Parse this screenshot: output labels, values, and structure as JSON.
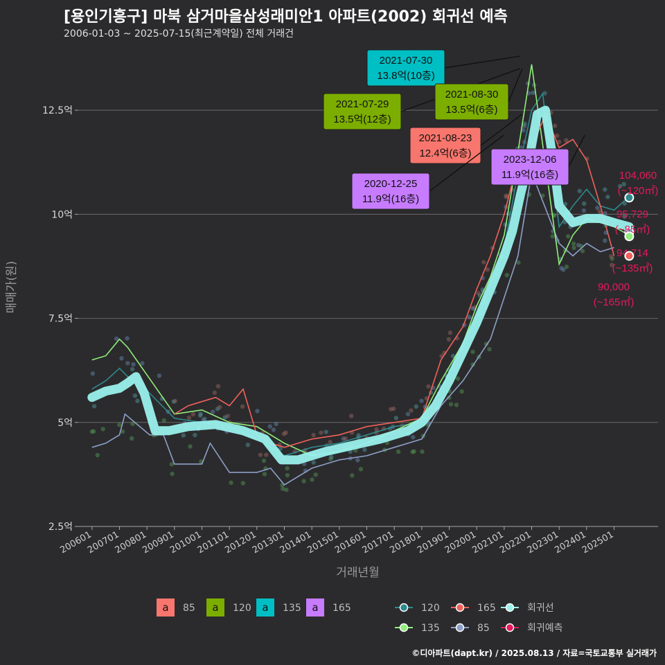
{
  "header": {
    "title": "[용인기흥구] 마북 삼거마을삼성래미안1 아파트(2002) 회귀선 예측",
    "subtitle": "2006-01-03 ~ 2025-07-15(최근계약일) 전체 거래건",
    "credit": "©디아파트(dapt.kr) / 2025.08.13 / 자료=국토교통부 실거래가"
  },
  "colors": {
    "background": "#2b2b2d",
    "size_85": "#f8766d",
    "size_120": "#7cae00",
    "size_135": "#00bfc4",
    "size_165": "#c77cff",
    "line_85": "#8ea0c8",
    "line_120": "#2e8a8e",
    "line_135": "#90ee7a",
    "line_165": "#f0625a",
    "regression": "#9af0ec",
    "forecast": "#e8195a"
  },
  "chart_data": {
    "type": "line",
    "xlabel": "거래년월",
    "ylabel": "매매가(원)",
    "x_ticks": [
      "200601",
      "200701",
      "200801",
      "200901",
      "201001",
      "201101",
      "201201",
      "201301",
      "201401",
      "201501",
      "201601",
      "201701",
      "201801",
      "201901",
      "202001",
      "202101",
      "202201",
      "202301",
      "202401",
      "202501"
    ],
    "y_ticks": [
      "2.5억",
      "5억",
      "7.5억",
      "10억",
      "12.5억"
    ],
    "y_values": [
      2.5,
      5,
      7.5,
      10,
      12.5
    ],
    "ylim": [
      2.5,
      13.9
    ],
    "y_unit": "억",
    "regression": {
      "name": "회귀선",
      "x": [
        2006.0,
        2006.5,
        2007.0,
        2007.3,
        2007.6,
        2007.9,
        2008.3,
        2008.8,
        2009.5,
        2010.5,
        2011.5,
        2012.3,
        2012.9,
        2013.5,
        2014.5,
        2015.5,
        2016.5,
        2017.5,
        2018.0,
        2018.5,
        2019.0,
        2019.5,
        2020.0,
        2020.5,
        2021.0,
        2021.3,
        2021.6,
        2021.9,
        2022.2,
        2022.5,
        2022.8,
        2023.0,
        2023.5,
        2024.0,
        2024.5,
        2025.0,
        2025.55
      ],
      "values": [
        5.6,
        5.75,
        5.82,
        5.95,
        6.1,
        5.7,
        4.8,
        4.8,
        4.9,
        4.95,
        4.8,
        4.6,
        4.1,
        4.1,
        4.3,
        4.45,
        4.6,
        4.8,
        5.0,
        5.4,
        6.0,
        6.7,
        7.4,
        8.2,
        9.0,
        9.6,
        10.5,
        11.3,
        12.4,
        12.5,
        11.2,
        10.2,
        9.8,
        9.9,
        9.9,
        9.8,
        9.7
      ]
    },
    "series": [
      {
        "name": "85",
        "x": [
          2006.0,
          2006.5,
          2007.0,
          2007.2,
          2008.1,
          2008.6,
          2009.0,
          2010.0,
          2010.3,
          2011.0,
          2012.0,
          2012.5,
          2013.0,
          2014.0,
          2015.0,
          2016.0,
          2017.0,
          2018.0,
          2018.7,
          2019.5,
          2020.0,
          2020.5,
          2021.0,
          2021.5,
          2022.0,
          2023.0,
          2023.5,
          2024.0,
          2024.5,
          2025.0
        ],
        "values": [
          4.4,
          4.5,
          4.7,
          5.2,
          4.7,
          4.7,
          4.0,
          4.0,
          4.5,
          3.8,
          3.8,
          3.9,
          3.5,
          3.9,
          4.1,
          4.2,
          4.4,
          4.6,
          5.4,
          6.0,
          6.5,
          7.0,
          8.0,
          9.0,
          11.0,
          9.3,
          9.0,
          9.3,
          9.1,
          9.2
        ]
      },
      {
        "name": "120",
        "x": [
          2006.0,
          2006.5,
          2007.0,
          2007.3,
          2007.8,
          2009.0,
          2010.0,
          2011.0,
          2012.0,
          2013.0,
          2014.0,
          2015.0,
          2016.0,
          2017.0,
          2018.0,
          2018.7,
          2019.5,
          2020.0,
          2020.5,
          2021.0,
          2021.5,
          2022.0,
          2022.4,
          2023.0,
          2023.5,
          2024.0,
          2024.5,
          2025.0,
          2025.5
        ],
        "values": [
          5.8,
          6.0,
          6.3,
          6.1,
          5.9,
          5.1,
          5.0,
          4.9,
          4.6,
          4.2,
          4.4,
          4.5,
          4.7,
          4.9,
          5.0,
          5.8,
          6.8,
          7.5,
          8.3,
          9.2,
          11.0,
          12.5,
          12.9,
          9.7,
          10.2,
          10.6,
          10.2,
          10.1,
          10.4
        ]
      },
      {
        "name": "135",
        "x": [
          2006.0,
          2006.5,
          2007.0,
          2007.3,
          2009.0,
          2010.0,
          2011.0,
          2012.0,
          2013.0,
          2014.0,
          2015.0,
          2016.0,
          2017.0,
          2018.0,
          2018.7,
          2019.5,
          2020.0,
          2020.5,
          2021.0,
          2021.5,
          2022.0,
          2023.0,
          2023.5,
          2024.0,
          2024.5,
          2025.0,
          2025.55
        ],
        "values": [
          6.5,
          6.6,
          7.0,
          6.8,
          5.2,
          5.3,
          5.0,
          4.9,
          4.5,
          4.2,
          4.3,
          4.5,
          4.8,
          5.1,
          6.0,
          6.9,
          7.8,
          8.5,
          9.5,
          11.5,
          13.6,
          8.8,
          9.5,
          9.9,
          9.8,
          9.7,
          9.5
        ]
      },
      {
        "name": "165",
        "x": [
          2009.0,
          2009.5,
          2010.0,
          2010.5,
          2011.0,
          2011.5,
          2012.0,
          2012.5,
          2013.0,
          2014.0,
          2015.0,
          2016.0,
          2017.0,
          2018.0,
          2018.7,
          2019.5,
          2020.0,
          2020.5,
          2021.0,
          2021.5,
          2022.0,
          2022.5,
          2023.0,
          2023.5,
          2024.0,
          2024.5,
          2025.0
        ],
        "values": [
          5.2,
          5.4,
          5.5,
          5.6,
          5.4,
          5.8,
          4.7,
          4.5,
          4.4,
          4.6,
          4.7,
          4.9,
          5.0,
          5.1,
          6.5,
          7.3,
          8.2,
          9.0,
          10.0,
          11.3,
          11.6,
          12.4,
          11.6,
          11.8,
          11.3,
          10.2,
          9.0
        ]
      }
    ],
    "callouts": [
      {
        "date": "2021-07-30",
        "price": "13.8억(10층)",
        "size": "135",
        "x": 2021.58,
        "value": 13.8
      },
      {
        "date": "2021-07-29",
        "price": "13.5억(12층)",
        "size": "120",
        "x": 2021.57,
        "value": 13.5
      },
      {
        "date": "2021-08-30",
        "price": "13.5억(6층)",
        "size": "120",
        "x": 2021.66,
        "value": 13.5
      },
      {
        "date": "2021-08-23",
        "price": "12.4억(6층)",
        "size": "85",
        "x": 2021.64,
        "value": 12.4
      },
      {
        "date": "2023-12-06",
        "price": "11.9억(16층)",
        "size": "165",
        "x": 2023.93,
        "value": 11.9
      },
      {
        "date": "2020-12-25",
        "price": "11.9억(16층)",
        "size": "165",
        "x": 2020.98,
        "value": 11.9
      }
    ],
    "forecast_labels": [
      {
        "price": "104,060",
        "area": "(~120㎡)",
        "x": 2025.55,
        "value": 10.4,
        "size": "120"
      },
      {
        "price": "95,729",
        "area": "(~85㎡)",
        "x": 2025.55,
        "value": 9.57,
        "size": "85"
      },
      {
        "price": "94,714",
        "area": "(~135㎡)",
        "x": 2025.55,
        "value": 9.47,
        "size": "135"
      },
      {
        "price": "90,000",
        "area": "(~165㎡)",
        "x": 2025.55,
        "value": 9.0,
        "size": "165"
      }
    ],
    "legend": {
      "sizes": [
        "85",
        "120",
        "135",
        "165"
      ],
      "glyph": "a",
      "lines": [
        "120",
        "135",
        "165",
        "85",
        "회귀선",
        "회귀예측"
      ],
      "placement": "bottom"
    }
  }
}
